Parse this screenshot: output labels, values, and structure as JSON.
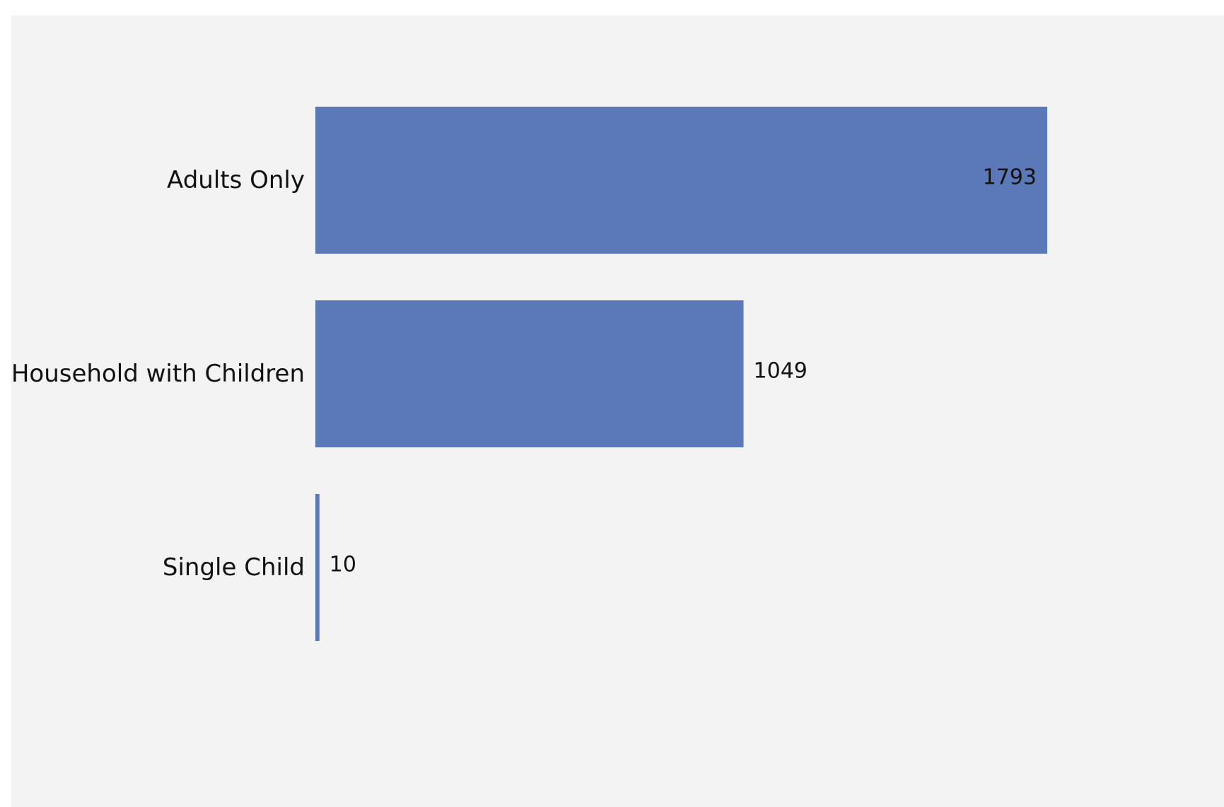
{
  "chart_data": {
    "type": "bar",
    "orientation": "horizontal",
    "categories": [
      "Adults Only",
      "Household with Children",
      "Single Child"
    ],
    "values": [
      1793,
      1049,
      10
    ],
    "xlim": [
      0,
      1793
    ],
    "grid": false,
    "legend": "none",
    "data_labels": true,
    "bar_color": "#5b78b8",
    "background_color": "#f3f3f3"
  }
}
